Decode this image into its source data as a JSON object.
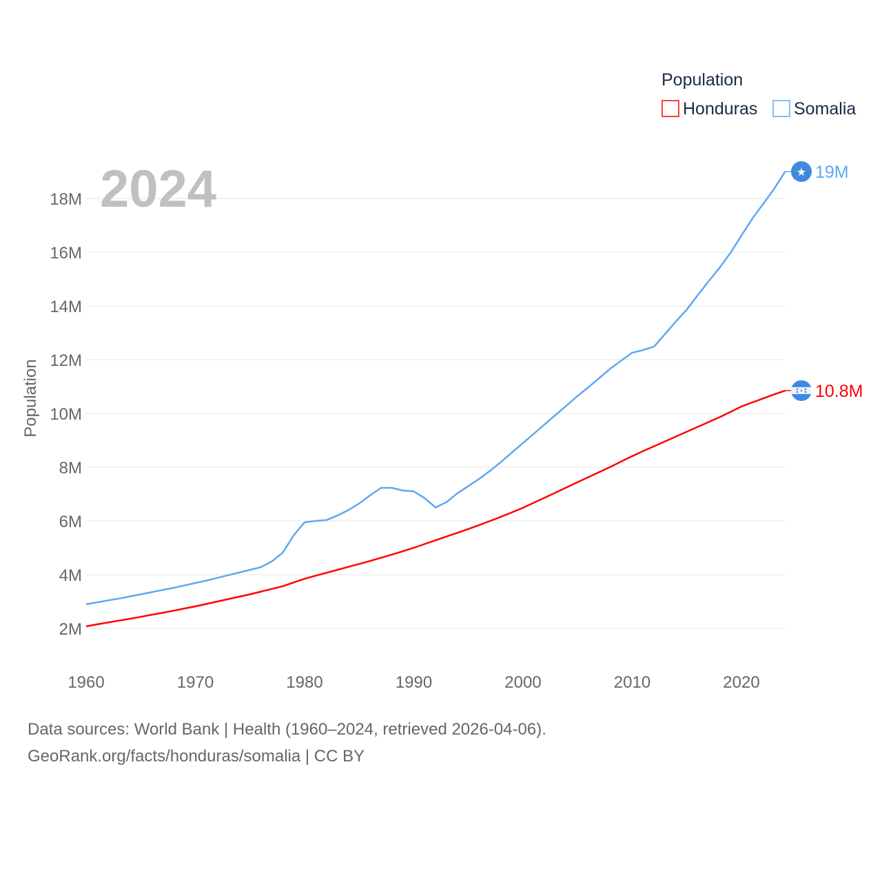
{
  "chart_data": {
    "type": "line",
    "title": "Population",
    "year_label": "2024",
    "ylabel": "Population",
    "xlabel": "",
    "xlim": [
      1960,
      2024
    ],
    "ylim": [
      2,
      19
    ],
    "x_ticks": [
      "1960",
      "1970",
      "1980",
      "1990",
      "2000",
      "2010",
      "2020"
    ],
    "y_ticks": [
      {
        "v": 2,
        "label": "2M"
      },
      {
        "v": 4,
        "label": "4M"
      },
      {
        "v": 6,
        "label": "6M"
      },
      {
        "v": 8,
        "label": "8M"
      },
      {
        "v": 10,
        "label": "10M"
      },
      {
        "v": 12,
        "label": "12M"
      },
      {
        "v": 14,
        "label": "14M"
      },
      {
        "v": 16,
        "label": "16M"
      },
      {
        "v": 18,
        "label": "18M"
      }
    ],
    "grid": true,
    "legend_position": "top-right",
    "x_start": 1960,
    "series": [
      {
        "name": "Honduras",
        "color": "#ff0000",
        "end_label": "10.8M",
        "flag_icon": "honduras-flag-icon",
        "values": [
          2.08,
          2.15,
          2.22,
          2.29,
          2.36,
          2.43,
          2.51,
          2.58,
          2.66,
          2.74,
          2.82,
          2.91,
          3.0,
          3.09,
          3.18,
          3.27,
          3.37,
          3.47,
          3.57,
          3.71,
          3.85,
          3.96,
          4.07,
          4.18,
          4.29,
          4.4,
          4.51,
          4.63,
          4.75,
          4.87,
          5.0,
          5.14,
          5.28,
          5.42,
          5.56,
          5.7,
          5.85,
          6.0,
          6.16,
          6.32,
          6.49,
          6.68,
          6.87,
          7.06,
          7.25,
          7.44,
          7.63,
          7.82,
          8.01,
          8.21,
          8.41,
          8.6,
          8.78,
          8.96,
          9.14,
          9.32,
          9.5,
          9.68,
          9.86,
          10.06,
          10.26,
          10.41,
          10.56,
          10.71,
          10.85
        ]
      },
      {
        "name": "Somalia",
        "color": "#5ea8f0",
        "end_label": "19M",
        "flag_icon": "somalia-flag-icon",
        "values": [
          2.9,
          2.97,
          3.04,
          3.11,
          3.19,
          3.27,
          3.35,
          3.43,
          3.51,
          3.6,
          3.69,
          3.78,
          3.88,
          3.98,
          4.08,
          4.18,
          4.28,
          4.49,
          4.82,
          5.46,
          5.95,
          6.0,
          6.03,
          6.2,
          6.4,
          6.65,
          6.95,
          7.23,
          7.23,
          7.13,
          7.1,
          6.85,
          6.5,
          6.7,
          7.03,
          7.3,
          7.57,
          7.87,
          8.2,
          8.55,
          8.9,
          9.25,
          9.6,
          9.95,
          10.3,
          10.65,
          10.98,
          11.32,
          11.67,
          11.97,
          12.26,
          12.36,
          12.49,
          12.95,
          13.42,
          13.87,
          14.4,
          14.92,
          15.42,
          15.98,
          16.62,
          17.25,
          17.8,
          18.36,
          19.0
        ]
      }
    ]
  },
  "footer": {
    "line1": "Data sources: World Bank | Health (1960–2024, retrieved 2026-04-06).",
    "line2": "GeoRank.org/facts/honduras/somalia | CC BY"
  }
}
